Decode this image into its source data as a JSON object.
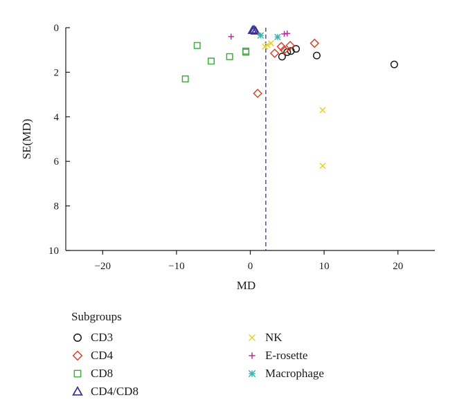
{
  "chart_data": {
    "type": "scatter",
    "title": "",
    "xlabel": "MD",
    "ylabel": "SE(MD)",
    "xlim": [
      -25,
      25
    ],
    "ylim": [
      0,
      10
    ],
    "y_inverted": true,
    "x_ticks": [
      -20,
      -10,
      0,
      10,
      20
    ],
    "x_tick_labels": [
      "−20",
      "−10",
      "0",
      "10",
      "20"
    ],
    "y_ticks": [
      0,
      2,
      4,
      6,
      8,
      10
    ],
    "y_tick_labels": [
      "0",
      "2",
      "4",
      "6",
      "8",
      "10"
    ],
    "grid": false,
    "reference_line": {
      "x": 2.1,
      "style": "dashed",
      "color": "#3b2f8f"
    },
    "legend_title": "Subgroups",
    "legend_position": "bottom",
    "series": [
      {
        "name": "CD3",
        "marker": "circle",
        "color": "#1a1a1a",
        "points": [
          [
            4.3,
            1.3
          ],
          [
            5.0,
            1.1
          ],
          [
            5.5,
            1.05
          ],
          [
            6.2,
            0.95
          ],
          [
            9.0,
            1.25
          ],
          [
            19.5,
            1.65
          ]
        ]
      },
      {
        "name": "CD4",
        "marker": "diamond",
        "color": "#d2452b",
        "points": [
          [
            3.3,
            1.15
          ],
          [
            4.2,
            0.85
          ],
          [
            4.6,
            1.0
          ],
          [
            5.4,
            0.8
          ],
          [
            8.7,
            0.7
          ],
          [
            1.0,
            2.95
          ]
        ]
      },
      {
        "name": "CD8",
        "marker": "square",
        "color": "#3fae3f",
        "points": [
          [
            -7.2,
            0.8
          ],
          [
            -5.3,
            1.5
          ],
          [
            -2.8,
            1.3
          ],
          [
            -0.6,
            1.05
          ],
          [
            -0.6,
            1.1
          ],
          [
            -8.8,
            2.3
          ]
        ]
      },
      {
        "name": "CD4/CD8",
        "marker": "triangle",
        "color": "#3b3296",
        "points": [
          [
            0.3,
            0.12
          ],
          [
            0.5,
            0.1
          ],
          [
            0.7,
            0.15
          ]
        ]
      },
      {
        "name": "NK",
        "marker": "x",
        "color": "#e3d12a",
        "points": [
          [
            2.0,
            0.85
          ],
          [
            2.3,
            0.78
          ],
          [
            2.8,
            0.7
          ],
          [
            9.8,
            3.7
          ],
          [
            9.8,
            6.2
          ]
        ]
      },
      {
        "name": "E-rosette",
        "marker": "plus",
        "color": "#b02fa0",
        "points": [
          [
            -2.6,
            0.4
          ],
          [
            4.6,
            0.28
          ],
          [
            5.0,
            0.26
          ]
        ]
      },
      {
        "name": "Macrophage",
        "marker": "asterisk",
        "color": "#3ab3b3",
        "points": [
          [
            1.4,
            0.35
          ],
          [
            3.7,
            0.42
          ]
        ]
      }
    ]
  }
}
